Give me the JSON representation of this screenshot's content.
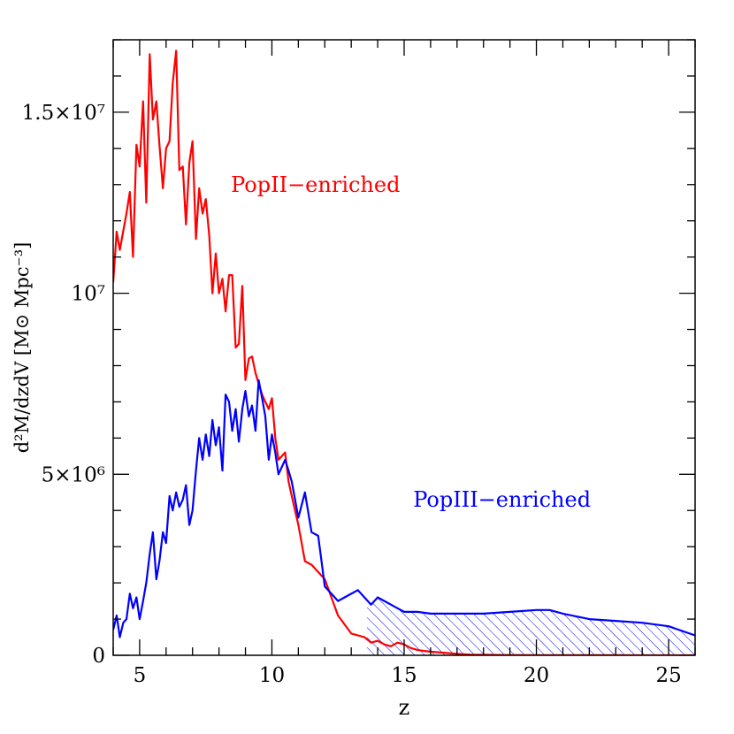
{
  "chart_data": {
    "type": "line",
    "xlabel": "z",
    "ylabel": "d²M/dzdV [M⊙ Mpc⁻³]",
    "xlim": [
      4,
      26
    ],
    "ylim": [
      0,
      17000000
    ],
    "x_ticks": [
      {
        "value": 5,
        "label": "5"
      },
      {
        "value": 10,
        "label": "10"
      },
      {
        "value": 15,
        "label": "15"
      },
      {
        "value": 20,
        "label": "20"
      },
      {
        "value": 25,
        "label": "25"
      }
    ],
    "y_ticks": [
      {
        "value": 0,
        "label": "0"
      },
      {
        "value": 5000000,
        "label": "5×10⁶"
      },
      {
        "value": 10000000,
        "label": "10⁷"
      },
      {
        "value": 15000000,
        "label": "1.5×10⁷"
      }
    ],
    "series": [
      {
        "name": "PopII−enriched",
        "color": "#ff0000",
        "x": [
          4.0,
          4.13,
          4.25,
          4.5,
          4.63,
          4.75,
          4.88,
          5.0,
          5.13,
          5.25,
          5.38,
          5.5,
          5.63,
          5.75,
          5.88,
          6.0,
          6.13,
          6.25,
          6.38,
          6.5,
          6.63,
          6.75,
          6.88,
          7.0,
          7.13,
          7.25,
          7.38,
          7.5,
          7.63,
          7.75,
          7.88,
          8.0,
          8.13,
          8.25,
          8.38,
          8.5,
          8.63,
          8.75,
          8.88,
          9.0,
          9.13,
          9.25,
          9.38,
          9.5,
          9.63,
          9.75,
          9.88,
          10.0,
          10.13,
          10.25,
          10.5,
          10.63,
          10.75,
          11.0,
          11.25,
          11.5,
          12.0,
          12.5,
          13.0,
          13.5,
          13.75,
          14.0,
          14.25,
          14.5,
          14.75,
          15.0,
          15.25,
          15.5,
          15.75,
          16.0,
          16.5,
          17.0,
          17.5,
          18.0,
          18.5,
          19.0,
          20.0,
          21.0,
          22.0,
          23.0,
          24.0,
          25.0,
          26.0
        ],
        "values": [
          10300000,
          11700000,
          11200000,
          12200000,
          12800000,
          11000000,
          14100000,
          13500000,
          15300000,
          12500000,
          16600000,
          14800000,
          15300000,
          14100000,
          12900000,
          14000000,
          14200000,
          15800000,
          16700000,
          13400000,
          13500000,
          11900000,
          13600000,
          14200000,
          11500000,
          12900000,
          12200000,
          12600000,
          11600000,
          10000000,
          11100000,
          10000000,
          10400000,
          9500000,
          10500000,
          10500000,
          8500000,
          8600000,
          10200000,
          7600000,
          8200000,
          8250000,
          7800000,
          7500000,
          7200000,
          7000000,
          6800000,
          7100000,
          6000000,
          5400000,
          5600000,
          4800000,
          4400000,
          3600000,
          2600000,
          2500000,
          2100000,
          1100000,
          600000,
          500000,
          350000,
          400000,
          300000,
          250000,
          350000,
          300000,
          200000,
          150000,
          120000,
          100000,
          70000,
          40000,
          20000,
          15000,
          10000,
          7000,
          5000,
          3000,
          2000,
          1500,
          1000,
          500,
          0
        ],
        "label_pos": [
          11.65,
          12800000
        ]
      },
      {
        "name": "PopIII−enriched",
        "color": "#0000ff",
        "x": [
          4.0,
          4.13,
          4.25,
          4.38,
          4.5,
          4.63,
          4.75,
          4.88,
          5.0,
          5.13,
          5.25,
          5.38,
          5.5,
          5.63,
          5.75,
          5.88,
          6.0,
          6.13,
          6.25,
          6.38,
          6.5,
          6.63,
          6.75,
          6.88,
          7.0,
          7.13,
          7.25,
          7.38,
          7.5,
          7.63,
          7.75,
          7.88,
          8.0,
          8.13,
          8.25,
          8.38,
          8.5,
          8.63,
          8.75,
          8.88,
          9.0,
          9.13,
          9.25,
          9.38,
          9.5,
          9.63,
          9.75,
          9.88,
          10.0,
          10.13,
          10.25,
          10.5,
          10.63,
          10.75,
          11.0,
          11.25,
          11.5,
          11.75,
          12.0,
          12.25,
          12.5,
          12.75,
          13.0,
          13.25,
          13.5,
          13.75,
          14.0,
          14.25,
          14.5,
          14.75,
          15.0,
          15.5,
          16.0,
          16.5,
          17.0,
          18.0,
          19.0,
          20.0,
          20.5,
          21.0,
          22.0,
          23.0,
          24.0,
          25.0,
          26.0
        ],
        "values": [
          700000,
          1100000,
          500000,
          900000,
          1000000,
          1700000,
          1300000,
          1600000,
          1000000,
          1500000,
          2000000,
          2800000,
          3400000,
          2100000,
          2600000,
          3400000,
          3100000,
          4400000,
          4000000,
          4500000,
          4100000,
          4300000,
          4700000,
          3600000,
          4000000,
          5100000,
          6000000,
          5400000,
          6100000,
          5500000,
          6500000,
          5800000,
          6300000,
          5100000,
          7200000,
          7000000,
          6200000,
          6800000,
          5900000,
          6800000,
          7300000,
          6600000,
          6900000,
          6200000,
          7600000,
          7100000,
          6600000,
          5400000,
          6100000,
          5600000,
          5000000,
          5400000,
          5100000,
          4800000,
          3800000,
          4500000,
          3400000,
          3300000,
          1900000,
          1700000,
          1500000,
          1600000,
          1700000,
          1800000,
          1600000,
          1400000,
          1600000,
          1500000,
          1400000,
          1300000,
          1200000,
          1200000,
          1150000,
          1150000,
          1150000,
          1150000,
          1200000,
          1250000,
          1250000,
          1150000,
          1000000,
          950000,
          900000,
          800000,
          550000
        ],
        "label_pos": [
          18.7,
          4100000
        ]
      }
    ],
    "hatched_region": {
      "series": "PopIII−enriched",
      "x_from": 13.6,
      "x_to": 26.0,
      "color": "#0000ff"
    }
  }
}
